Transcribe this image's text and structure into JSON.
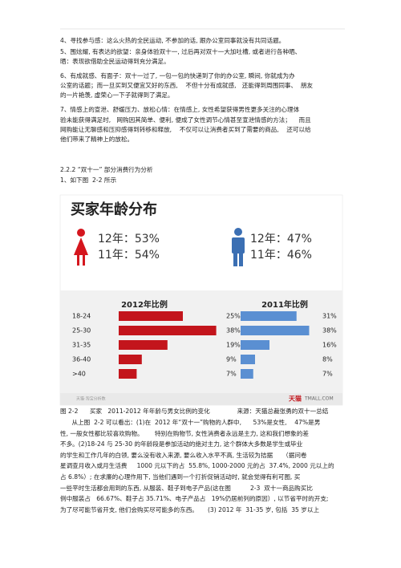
{
  "top_paragraphs": [
    "4、寻找参与感：这么火热的全民运动, 不参加的话, 跟办公室同事就没有共同话题。",
    "5、围炫耀, 有表达的欲望：亲身体验双十一, 过后再对双十一大加吐槽, 或者进行各种晒、",
    "晒：表现欲借助全民运动得到充分满足。",
    "6、有成就感、有面子：双十一过了, 一包一包的快递到了你的办公室, 瞬间, 你就成为办",
    "公室的话题；而一旦买到又便宜又好的东西,    不但十分有成就感,   还能得到周围同事、  朋友",
    "的一片艳羡, 虚荣心一下子就得到了满足。",
    "7、情感上的宣泄、舒缓压力、放松心情：在情感上, 女性希望获得男性更多关注的心理体",
    "验未能获得满足时,   网购因其简单、便利, 便成了女性调节心情甚至宣泄情感的方法；    而且",
    "网购能让无聊感和压抑感得到转移和释放,    不仅可以让消费者买到了需要的商品,    还可以给",
    "他们带来了精神上的放松。"
  ],
  "section_heading": "2.2.2 “双十一” 部分消费行为分析",
  "intro": "1、如下图  2-2 所示",
  "figure": {
    "title": "买家年龄分布",
    "female": [
      "12年：53%",
      "11年：54%"
    ],
    "male": [
      "12年：47%",
      "11年：46%"
    ],
    "categories": [
      "18-24",
      "25-30",
      "31-35",
      "36-40",
      ">40"
    ],
    "series": [
      {
        "name": "2012年比例",
        "color": "#c3151c",
        "values": [
          25,
          38,
          19,
          9,
          7
        ],
        "value_labels": [
          "25%",
          "38%",
          "19%",
          "9%",
          "7%"
        ]
      },
      {
        "name": "2011年比例",
        "color": "#5a8fd2",
        "values": [
          31,
          38,
          16,
          8,
          7
        ],
        "value_labels": [
          "31%",
          "38%",
          "16%",
          "8%",
          "7%"
        ]
      }
    ],
    "watermark": "天猫·淘宝分析数",
    "brand": "天猫",
    "brand_url": "TMALL.COM"
  },
  "caption": "图 2-2      买家   2011-2012 年年龄与男女比例的变化              来源：天猫总裁张勇的双十一总结",
  "body_paragraph": [
    "      从上图  2-2 可以看出：(1)在  2012 年“双十一”购物的人群中,      53%是女性,    47%是男",
    "性, 一般女性都比较喜欢购物。      特别在购物节, 女性消费者永远是主力, 这和我们想象的差",
    "不多。(2)18-24 与 25-30 的年龄段是参加活动的绝对主力, 这个群体大多数是学生或毕业",
    "的学生和工作几年的白领, 要么没有收入来源, 要么收入水平不高, 生活较为拮据     （据问卷",
    "星调查月收入或月生活费     1000 元以下的占  55.8%, 1000-2000 元的占  37.4%, 2000 元以上的",
    "占 6.8%）; 在求廉的心理作用下, 当他们遇到一个打折促销活动时, 就会觉得有利可图, 买",
    "一些平时生活都会用到的东西, 从服装、鞋子到电子产品(这在图          2-3  双十一商品购买比",
    "例中服装占   66.67%、鞋子占 35.71%、电子产品占   19%仍居前列的原因）, 以节省平时的开支;",
    "为了尽可能节省开支, 他们会购买尽可能多的东西。     (3) 2012 年  31-35 岁, 包括  35 岁以上"
  ]
}
